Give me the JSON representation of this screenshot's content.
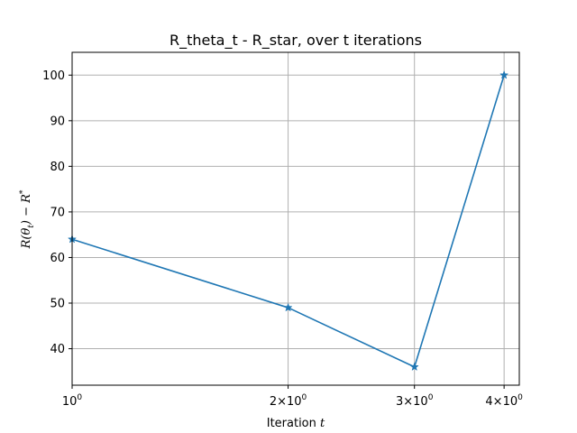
{
  "chart_data": {
    "type": "line",
    "title": "R_theta_t - R_star, over t iterations",
    "xlabel": {
      "prefix": "Iteration ",
      "var": "t"
    },
    "ylabel": "R(θt) − R*",
    "x_scale": "log",
    "xlim": [
      1,
      4.2
    ],
    "ylim": [
      32,
      105
    ],
    "grid": true,
    "x": [
      1,
      2,
      3,
      4
    ],
    "x_tick_labels": [
      {
        "value": 1,
        "base": "10",
        "exp": "0"
      },
      {
        "value": 2,
        "mant": "2",
        "base": "10",
        "exp": "0"
      },
      {
        "value": 3,
        "mant": "3",
        "base": "10",
        "exp": "0"
      },
      {
        "value": 4,
        "mant": "4",
        "base": "10",
        "exp": "0"
      }
    ],
    "y_ticks": [
      40,
      50,
      60,
      70,
      80,
      90,
      100
    ],
    "series": [
      {
        "values": [
          64,
          49,
          36,
          100
        ],
        "color": "#1f77b4",
        "marker": "star"
      }
    ]
  }
}
